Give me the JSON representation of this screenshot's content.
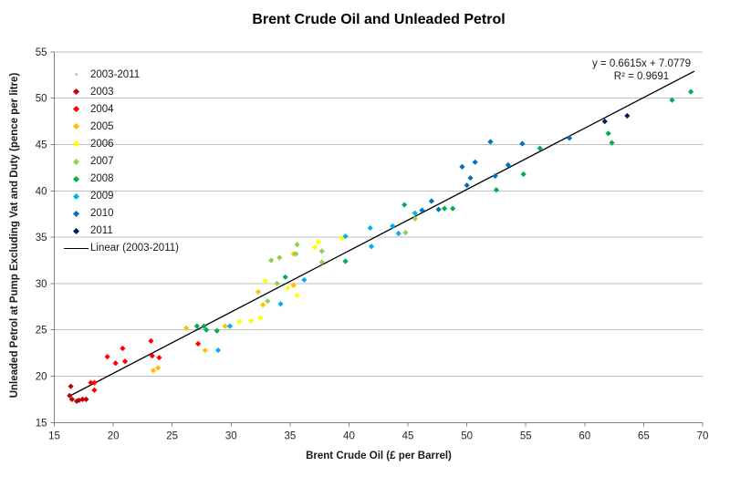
{
  "title": "Brent Crude Oil and Unleaded Petrol",
  "equation": {
    "line1": "y = 0.6615x + 7.0779",
    "line2": "R² = 0.9691"
  },
  "legend": [
    {
      "label": "2003-2011",
      "marker": "dot",
      "color": "#CCC0DA"
    },
    {
      "label": "2003",
      "marker": "diamond",
      "color": "#C00000"
    },
    {
      "label": "2004",
      "marker": "diamond",
      "color": "#FF0000"
    },
    {
      "label": "2005",
      "marker": "diamond",
      "color": "#FFC000"
    },
    {
      "label": "2006",
      "marker": "diamond",
      "color": "#FFFF00"
    },
    {
      "label": "2007",
      "marker": "diamond",
      "color": "#92D050"
    },
    {
      "label": "2008",
      "marker": "diamond",
      "color": "#00B050"
    },
    {
      "label": "2009",
      "marker": "diamond",
      "color": "#00B0F0"
    },
    {
      "label": "2010",
      "marker": "diamond",
      "color": "#0070C0"
    },
    {
      "label": "2011",
      "marker": "diamond",
      "color": "#002060"
    },
    {
      "label": "Linear (2003-2011)",
      "marker": "line",
      "color": "#000000"
    }
  ],
  "colors": {
    "gridline": "#BFBFBF",
    "axis": "#808080",
    "tick_text": "#262626"
  },
  "chart_data": {
    "type": "scatter",
    "title": "Brent Crude Oil and Unleaded Petrol",
    "xlabel": "Brent Crude Oil (£ per Barrel)",
    "ylabel": "Unleaded Petrol at Pump Excluding Vat and Duty (pence per litre)",
    "xlim": [
      15,
      70
    ],
    "ylim": [
      15,
      55
    ],
    "x_ticks": [
      15,
      20,
      25,
      30,
      35,
      40,
      45,
      50,
      55,
      60,
      65,
      70
    ],
    "y_ticks": [
      15,
      20,
      25,
      30,
      35,
      40,
      45,
      50,
      55
    ],
    "grid": "horizontal",
    "legend_position": "upper-left-inside",
    "series": [
      {
        "name": "2003",
        "color": "#C00000",
        "points": [
          [
            16.3,
            17.9
          ],
          [
            16.4,
            18.9
          ],
          [
            16.5,
            17.5
          ],
          [
            16.9,
            17.3
          ],
          [
            17.1,
            17.4
          ],
          [
            17.4,
            17.5
          ],
          [
            17.7,
            17.5
          ]
        ]
      },
      {
        "name": "2004",
        "color": "#FF0000",
        "points": [
          [
            18.1,
            19.3
          ],
          [
            18.4,
            19.3
          ],
          [
            18.4,
            18.5
          ],
          [
            19.5,
            22.1
          ],
          [
            20.2,
            21.4
          ],
          [
            20.8,
            23.0
          ],
          [
            21.0,
            21.6
          ],
          [
            23.2,
            23.8
          ],
          [
            23.3,
            22.2
          ],
          [
            23.9,
            22.0
          ],
          [
            27.2,
            23.5
          ]
        ]
      },
      {
        "name": "2005",
        "color": "#FFC000",
        "points": [
          [
            23.4,
            20.6
          ],
          [
            23.8,
            20.9
          ],
          [
            26.2,
            25.2
          ],
          [
            27.8,
            22.8
          ],
          [
            29.5,
            25.4
          ],
          [
            32.3,
            29.1
          ],
          [
            32.7,
            27.7
          ],
          [
            35.3,
            33.2
          ],
          [
            35.3,
            29.8
          ]
        ]
      },
      {
        "name": "2006",
        "color": "#FFFF00",
        "points": [
          [
            30.7,
            25.9
          ],
          [
            31.7,
            26.0
          ],
          [
            32.5,
            26.3
          ],
          [
            32.9,
            30.3
          ],
          [
            34.8,
            29.5
          ],
          [
            35.6,
            28.7
          ],
          [
            37.1,
            33.9
          ],
          [
            37.4,
            34.5
          ],
          [
            39.4,
            34.9
          ]
        ]
      },
      {
        "name": "2007",
        "color": "#92D050",
        "points": [
          [
            33.1,
            28.1
          ],
          [
            33.4,
            32.5
          ],
          [
            33.9,
            30.0
          ],
          [
            34.1,
            32.8
          ],
          [
            35.5,
            33.2
          ],
          [
            35.6,
            34.2
          ],
          [
            37.7,
            33.5
          ],
          [
            37.7,
            32.3
          ],
          [
            44.8,
            35.5
          ],
          [
            45.6,
            37.0
          ]
        ]
      },
      {
        "name": "2008",
        "color": "#00B050",
        "points": [
          [
            27.1,
            25.4
          ],
          [
            27.7,
            25.4
          ],
          [
            27.9,
            25.0
          ],
          [
            28.8,
            24.9
          ],
          [
            34.6,
            30.7
          ],
          [
            39.7,
            32.4
          ],
          [
            44.7,
            38.5
          ],
          [
            48.1,
            38.1
          ],
          [
            48.8,
            38.1
          ],
          [
            52.5,
            40.1
          ],
          [
            54.8,
            41.8
          ],
          [
            56.2,
            44.6
          ],
          [
            62.0,
            46.2
          ],
          [
            62.3,
            45.2
          ],
          [
            67.4,
            49.8
          ],
          [
            69.0,
            50.7
          ]
        ]
      },
      {
        "name": "2009",
        "color": "#00B0F0",
        "points": [
          [
            28.9,
            22.8
          ],
          [
            29.9,
            25.4
          ],
          [
            34.2,
            27.8
          ],
          [
            36.2,
            30.4
          ],
          [
            39.7,
            35.1
          ],
          [
            41.8,
            36.0
          ],
          [
            41.9,
            34.0
          ],
          [
            43.7,
            36.2
          ],
          [
            44.2,
            35.4
          ],
          [
            45.6,
            37.6
          ]
        ]
      },
      {
        "name": "2010",
        "color": "#0070C0",
        "points": [
          [
            46.2,
            37.9
          ],
          [
            47.0,
            38.9
          ],
          [
            47.6,
            38.0
          ],
          [
            49.6,
            42.6
          ],
          [
            50.0,
            40.6
          ],
          [
            50.3,
            41.4
          ],
          [
            50.7,
            43.1
          ],
          [
            52.0,
            45.3
          ],
          [
            52.4,
            41.6
          ],
          [
            53.5,
            42.8
          ],
          [
            54.7,
            45.1
          ],
          [
            58.7,
            45.7
          ]
        ]
      },
      {
        "name": "2011",
        "color": "#002060",
        "points": [
          [
            61.7,
            47.5
          ],
          [
            63.6,
            48.1
          ]
        ]
      }
    ],
    "trendline": {
      "name": "Linear (2003-2011)",
      "slope": 0.6615,
      "intercept": 7.0779,
      "r_squared": 0.9691,
      "x_range": [
        16.3,
        69.3
      ],
      "color": "#000000"
    }
  }
}
